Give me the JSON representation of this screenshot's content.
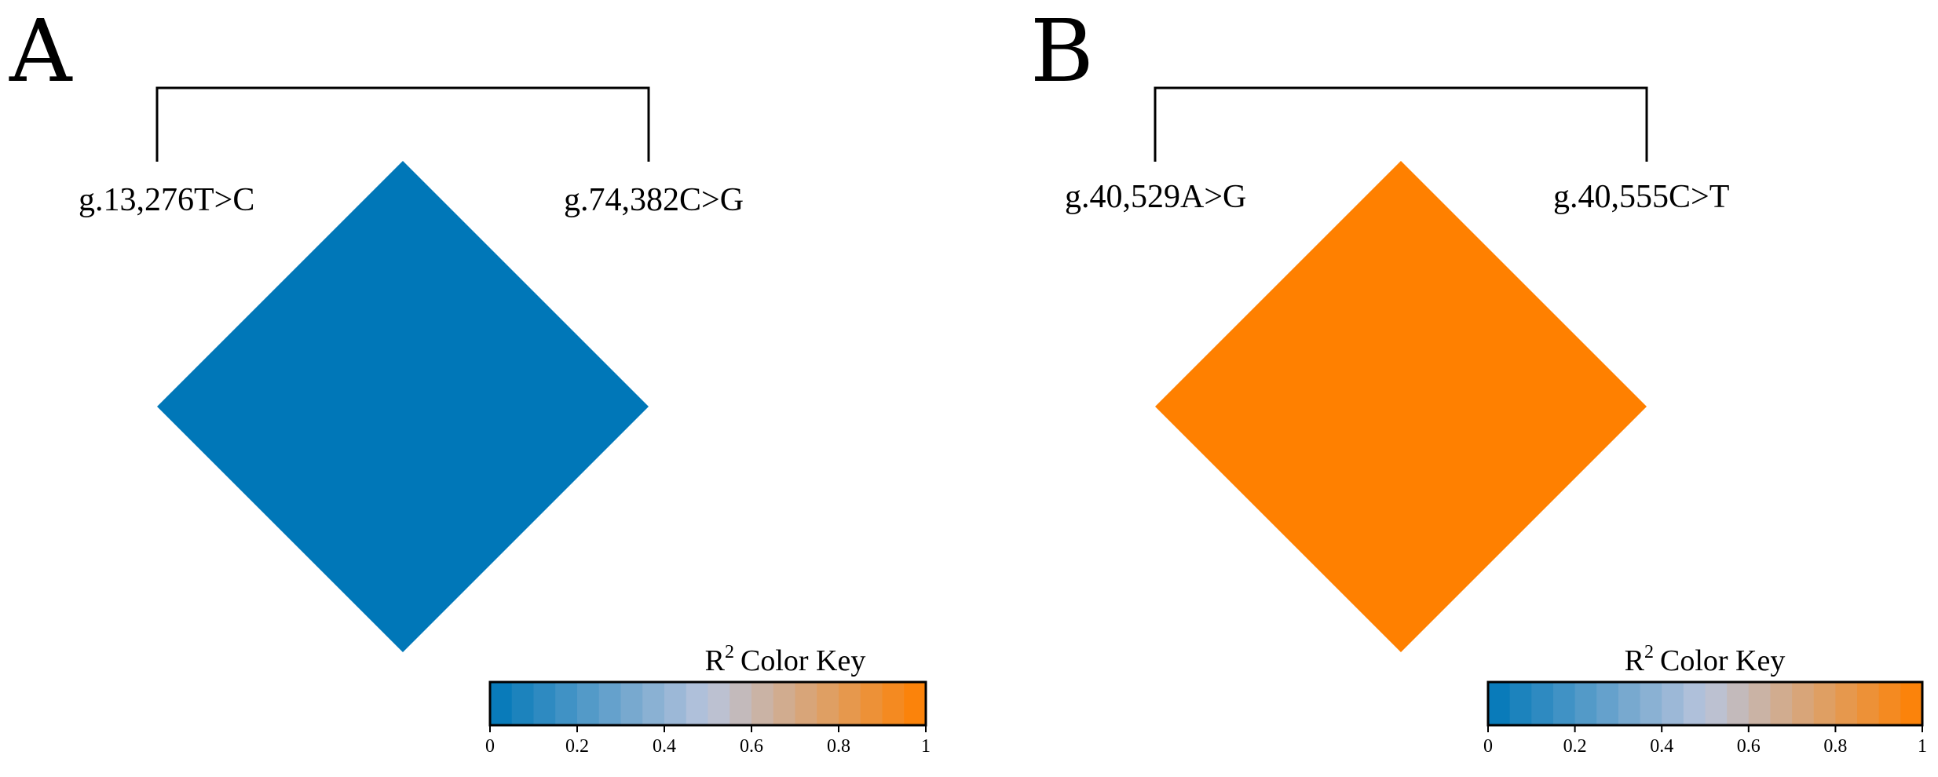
{
  "chart_data": [
    {
      "type": "heatmap",
      "panel": "A",
      "snps": [
        "g.13,276T>C",
        "g.74,382C>G"
      ],
      "cells": [
        {
          "snp_a": "g.13,276T>C",
          "snp_b": "g.74,382C>G",
          "r2": 0
        }
      ],
      "color_key": {
        "title": "Color Key",
        "title_prefix": "R",
        "title_sup": "2",
        "range": [
          0,
          1
        ],
        "ticks": [
          "0",
          "0.2",
          "0.4",
          "0.6",
          "0.8",
          "1"
        ]
      }
    },
    {
      "type": "heatmap",
      "panel": "B",
      "snps": [
        "g.40,529A>G",
        "g.40,555C>T"
      ],
      "cells": [
        {
          "snp_a": "g.40,529A>G",
          "snp_b": "g.40,555C>T",
          "r2": 1
        }
      ],
      "color_key": {
        "title": "Color Key",
        "title_prefix": "R",
        "title_sup": "2",
        "range": [
          0,
          1
        ],
        "ticks": [
          "0",
          "0.2",
          "0.4",
          "0.6",
          "0.8",
          "1"
        ]
      }
    }
  ],
  "colors": {
    "scale_low": "#0077b8",
    "scale_mid": "#b8c4dc",
    "scale_high": "#ff8000"
  }
}
